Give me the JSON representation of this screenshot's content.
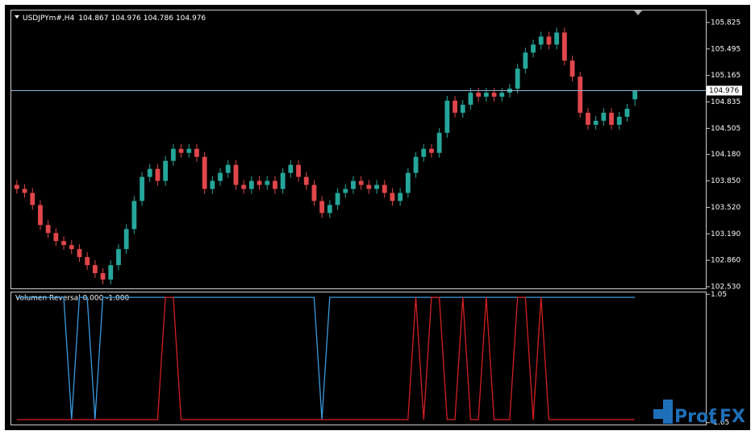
{
  "chart_data": [
    {
      "type": "candlestick",
      "title": "USDJPYm#,H4",
      "bull_color": "#26a69a",
      "bear_color": "#e0464a",
      "price_line_color": "#8fb4d8",
      "open": [
        103.8,
        103.75,
        103.7,
        103.55,
        103.3,
        103.2,
        103.1,
        103.05,
        103.0,
        102.9,
        102.8,
        102.7,
        102.62,
        102.8,
        103.0,
        103.25,
        103.6,
        103.9,
        104.0,
        103.85,
        104.1,
        104.25,
        104.2,
        104.25,
        104.15,
        103.75,
        103.85,
        103.95,
        104.05,
        103.8,
        103.75,
        103.85,
        103.8,
        103.85,
        103.75,
        103.95,
        104.05,
        103.9,
        103.8,
        103.6,
        103.45,
        103.55,
        103.7,
        103.75,
        103.85,
        103.8,
        103.75,
        103.8,
        103.7,
        103.6,
        103.7,
        103.95,
        104.15,
        104.25,
        104.2,
        104.45,
        104.85,
        104.7,
        104.8,
        104.95,
        104.9,
        104.95,
        104.9,
        104.95,
        105.0,
        105.25,
        105.45,
        105.55,
        105.65,
        105.55,
        105.7,
        105.35,
        105.15,
        104.7,
        104.55,
        104.6,
        104.7,
        104.55,
        104.65,
        104.867
      ],
      "high": [
        103.86,
        103.81,
        103.76,
        103.61,
        103.36,
        103.26,
        103.16,
        103.11,
        103.06,
        102.96,
        102.86,
        102.76,
        102.86,
        103.06,
        103.31,
        103.66,
        103.96,
        104.06,
        104.06,
        104.16,
        104.31,
        104.31,
        104.31,
        104.31,
        104.21,
        103.91,
        104.01,
        104.11,
        104.11,
        103.86,
        103.91,
        103.91,
        103.91,
        103.91,
        104.01,
        104.11,
        104.11,
        103.96,
        103.86,
        103.66,
        103.61,
        103.76,
        103.81,
        103.91,
        103.91,
        103.86,
        103.86,
        103.86,
        103.76,
        103.76,
        104.01,
        104.21,
        104.31,
        104.31,
        104.51,
        104.91,
        104.91,
        104.86,
        105.01,
        105.01,
        105.01,
        105.01,
        105.01,
        105.06,
        105.31,
        105.51,
        105.61,
        105.71,
        105.71,
        105.76,
        105.76,
        105.41,
        105.21,
        104.76,
        104.66,
        104.76,
        104.76,
        104.71,
        104.81,
        104.976
      ],
      "low": [
        103.69,
        103.64,
        103.49,
        103.24,
        103.14,
        103.04,
        102.99,
        102.94,
        102.84,
        102.74,
        102.64,
        102.56,
        102.56,
        102.74,
        102.94,
        103.19,
        103.54,
        103.84,
        103.79,
        103.79,
        104.04,
        104.14,
        104.14,
        104.09,
        103.69,
        103.69,
        103.79,
        103.89,
        103.74,
        103.69,
        103.69,
        103.74,
        103.74,
        103.69,
        103.69,
        103.89,
        103.84,
        103.74,
        103.54,
        103.39,
        103.39,
        103.49,
        103.64,
        103.69,
        103.74,
        103.69,
        103.69,
        103.64,
        103.54,
        103.54,
        103.64,
        103.89,
        104.09,
        104.14,
        104.14,
        104.39,
        104.64,
        104.64,
        104.74,
        104.84,
        104.84,
        104.84,
        104.84,
        104.89,
        104.94,
        105.19,
        105.39,
        105.49,
        105.49,
        105.49,
        105.29,
        105.09,
        104.64,
        104.49,
        104.49,
        104.54,
        104.49,
        104.49,
        104.59,
        104.786
      ],
      "close": [
        103.75,
        103.7,
        103.55,
        103.3,
        103.2,
        103.1,
        103.05,
        103.0,
        102.9,
        102.8,
        102.7,
        102.62,
        102.8,
        103.0,
        103.25,
        103.6,
        103.9,
        104.0,
        103.85,
        104.1,
        104.25,
        104.2,
        104.25,
        104.15,
        103.75,
        103.85,
        103.95,
        104.05,
        103.8,
        103.75,
        103.85,
        103.8,
        103.85,
        103.75,
        103.95,
        104.05,
        103.9,
        103.8,
        103.6,
        103.45,
        103.55,
        103.7,
        103.75,
        103.85,
        103.8,
        103.75,
        103.8,
        103.7,
        103.6,
        103.7,
        103.95,
        104.15,
        104.25,
        104.2,
        104.45,
        104.85,
        104.7,
        104.8,
        104.95,
        104.9,
        104.95,
        104.9,
        104.95,
        105.0,
        105.25,
        105.45,
        105.55,
        105.65,
        105.55,
        105.7,
        105.35,
        105.15,
        104.7,
        104.55,
        104.6,
        104.7,
        104.55,
        104.65,
        104.75,
        104.976
      ],
      "ylim": [
        102.51,
        105.975
      ],
      "yticks": [
        105.825,
        105.495,
        105.165,
        104.835,
        104.505,
        {
          "value": 104.18,
          "label": "104.180"
        },
        {
          "value": 103.85,
          "label": "103.850"
        },
        {
          "value": 103.52,
          "label": "103.520"
        },
        {
          "value": 103.19,
          "label": "103.190"
        },
        {
          "value": 102.86,
          "label": "102.860"
        },
        {
          "value": 102.53,
          "label": "102.530"
        }
      ]
    },
    {
      "type": "line",
      "title": "Volumen Reversal 0.000 -1.000",
      "series": [
        {
          "color": "#3a9be0",
          "values": [
            1,
            1,
            1,
            1,
            1,
            1,
            1,
            -1,
            1,
            1,
            -1,
            1,
            1,
            1,
            1,
            1,
            1,
            1,
            1,
            1,
            1,
            1,
            1,
            1,
            1,
            1,
            1,
            1,
            1,
            1,
            1,
            1,
            1,
            1,
            1,
            1,
            1,
            1,
            1,
            -1,
            1,
            1,
            1,
            1,
            1,
            1,
            1,
            1,
            1,
            1,
            1,
            1,
            1,
            1,
            1,
            1,
            1,
            1,
            1,
            1,
            1,
            1,
            1,
            1,
            1,
            1,
            1,
            1,
            1,
            1,
            1,
            1,
            1,
            1,
            1,
            1,
            1,
            1,
            1,
            1
          ]
        },
        {
          "color": "#d42020",
          "values": [
            -1,
            -1,
            -1,
            -1,
            -1,
            -1,
            -1,
            -1,
            -1,
            -1,
            -1,
            -1,
            -1,
            -1,
            -1,
            -1,
            -1,
            -1,
            -1,
            1,
            1,
            -1,
            -1,
            -1,
            -1,
            -1,
            -1,
            -1,
            -1,
            -1,
            -1,
            -1,
            -1,
            -1,
            -1,
            -1,
            -1,
            -1,
            -1,
            -1,
            -1,
            -1,
            -1,
            -1,
            -1,
            -1,
            -1,
            -1,
            -1,
            -1,
            -1,
            1,
            -1,
            1,
            1,
            -1,
            -1,
            1,
            -1,
            -1,
            1,
            -1,
            -1,
            -1,
            1,
            1,
            -1,
            1,
            -1,
            -1,
            -1,
            -1,
            -1,
            -1,
            -1,
            -1,
            -1,
            -1,
            -1,
            -1
          ]
        }
      ],
      "ylim": [
        -1.08,
        1.08
      ],
      "yticks": [
        1.05,
        -1.05
      ]
    }
  ],
  "watermark": {
    "left": "Prof",
    "right": "FX"
  }
}
